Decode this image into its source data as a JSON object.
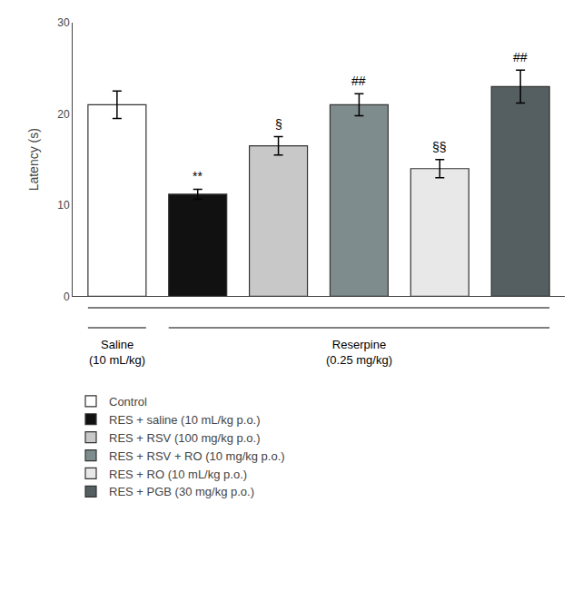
{
  "chart_data": {
    "type": "bar",
    "ylabel": "Latency (s)",
    "ylim": [
      0,
      30
    ],
    "yticks": [
      0,
      10,
      20,
      30
    ],
    "grid": false,
    "tick_labels": "y",
    "legend": "below",
    "series": [
      {
        "name": "Control",
        "color": "#ffffff",
        "values": [
          21.0
        ],
        "error": [
          1.5
        ]
      },
      {
        "name": "RES + saline (10 mL/kg p.o.)",
        "color": "#111111",
        "values": [
          11.2
        ],
        "error": [
          0.55
        ],
        "annotation": "**"
      },
      {
        "name": "RES + RSV (100 mg/kg p.o.)",
        "color": "#c8c8c8",
        "values": [
          16.5
        ],
        "error": [
          1.0
        ],
        "annotation": "§"
      },
      {
        "name": "RES + RSV + RO (10 mg/kg p.o.)",
        "color": "#7f8c8d",
        "values": [
          21.0
        ],
        "error": [
          1.2
        ],
        "annotation": "##"
      },
      {
        "name": "RES + RO (10 mL/kg p.o.)",
        "color": "#e8e8e8",
        "values": [
          14.0
        ],
        "error": [
          1.0
        ],
        "annotation": "§§"
      },
      {
        "name": "RES + PGB (30 mg/kg p.o.)",
        "color": "#555f61",
        "values": [
          23.0
        ],
        "error": [
          1.8
        ],
        "annotation": "##"
      }
    ],
    "groups": [
      {
        "label": "Saline\n(10 mL/kg)",
        "members": [
          "Control"
        ]
      },
      {
        "label": "Reserpine\n(0.25 mg/kg)",
        "members": [
          "RES + saline (10 mL/kg p.o.)",
          "RES + RSV (100 mg/kg p.o.)",
          "RES + RSV + RO (10 mg/kg p.o.)",
          "RES + RO (10 mL/kg p.o.)",
          "RES + PGB (30 mg/kg p.o.)"
        ]
      }
    ]
  }
}
